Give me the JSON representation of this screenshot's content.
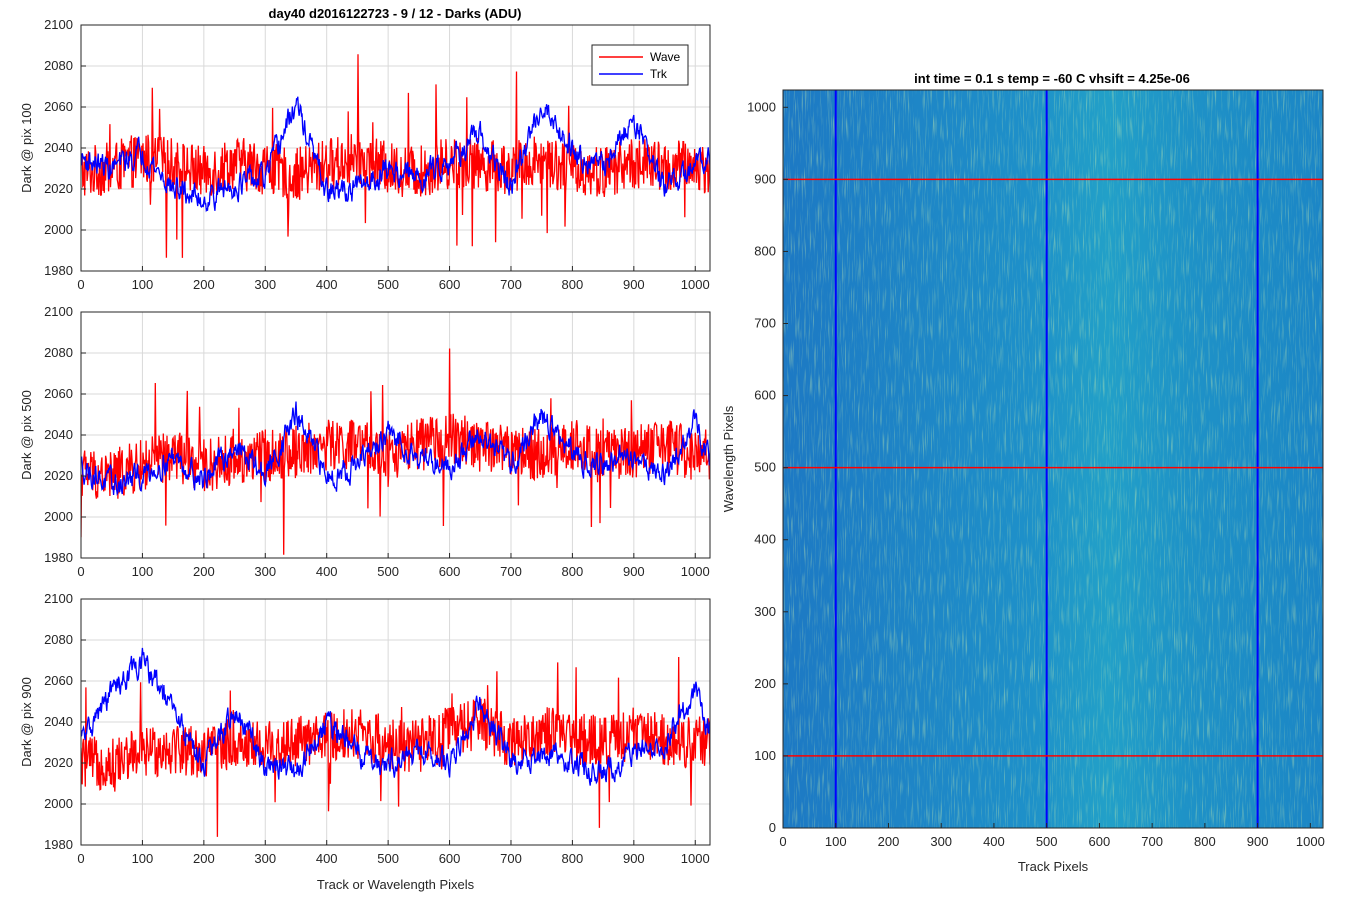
{
  "figure_title": "day40 d2016122723 - 9 / 12 - Darks (ADU)",
  "legend": [
    {
      "label": "Wave",
      "color": "#ff0000"
    },
    {
      "label": "Trk",
      "color": "#0000ff"
    }
  ],
  "colors": {
    "wave": "#ff0000",
    "trk": "#0000ff",
    "grid": "#d9d9d9",
    "axis": "#262626",
    "heat_low": "#1a78c8",
    "heat_mid": "#20a8c8",
    "heat_high": "#8fd06a"
  },
  "chart_data": [
    {
      "type": "line",
      "title": "day40 d2016122723 - 9 / 12 - Darks (ADU)",
      "xlabel": "",
      "ylabel": "Dark @ pix 100",
      "xlim": [
        0,
        1024
      ],
      "ylim": [
        1980,
        2100
      ],
      "xticks": [
        0,
        100,
        200,
        300,
        400,
        500,
        600,
        700,
        800,
        900,
        1000
      ],
      "yticks": [
        1980,
        2000,
        2020,
        2040,
        2060,
        2080,
        2100
      ],
      "grid": true,
      "legend_placement": "top-right",
      "series": [
        {
          "name": "Wave",
          "color": "#ff0000",
          "x": [
            0,
            50,
            100,
            150,
            200,
            250,
            300,
            350,
            400,
            450,
            500,
            550,
            600,
            650,
            700,
            750,
            800,
            850,
            900,
            950,
            1000,
            1024
          ],
          "values": [
            2028,
            2030,
            2035,
            2032,
            2028,
            2033,
            2030,
            2027,
            2032,
            2035,
            2030,
            2028,
            2033,
            2032,
            2030,
            2035,
            2030,
            2028,
            2033,
            2030,
            2032,
            2030
          ]
        },
        {
          "name": "Trk",
          "color": "#0000ff",
          "x": [
            0,
            50,
            100,
            150,
            200,
            250,
            300,
            350,
            400,
            450,
            500,
            550,
            600,
            650,
            700,
            750,
            800,
            850,
            900,
            950,
            1000,
            1024
          ],
          "values": [
            2035,
            2030,
            2038,
            2020,
            2015,
            2022,
            2025,
            2062,
            2018,
            2020,
            2030,
            2025,
            2035,
            2045,
            2020,
            2062,
            2040,
            2030,
            2055,
            2020,
            2030,
            2040
          ]
        }
      ]
    },
    {
      "type": "line",
      "title": "",
      "xlabel": "",
      "ylabel": "Dark @ pix 500",
      "xlim": [
        0,
        1024
      ],
      "ylim": [
        1980,
        2100
      ],
      "xticks": [
        0,
        100,
        200,
        300,
        400,
        500,
        600,
        700,
        800,
        900,
        1000
      ],
      "yticks": [
        1980,
        2000,
        2020,
        2040,
        2060,
        2080,
        2100
      ],
      "grid": true,
      "series": [
        {
          "name": "Wave",
          "color": "#ff0000",
          "x": [
            0,
            50,
            100,
            150,
            200,
            250,
            300,
            350,
            400,
            450,
            500,
            550,
            600,
            650,
            700,
            750,
            800,
            850,
            900,
            950,
            1000,
            1024
          ],
          "values": [
            2022,
            2020,
            2025,
            2030,
            2025,
            2028,
            2030,
            2032,
            2035,
            2035,
            2030,
            2035,
            2038,
            2035,
            2032,
            2030,
            2035,
            2030,
            2032,
            2035,
            2030,
            2030
          ]
        },
        {
          "name": "Trk",
          "color": "#0000ff",
          "x": [
            0,
            50,
            100,
            150,
            200,
            250,
            300,
            350,
            400,
            450,
            500,
            550,
            600,
            650,
            700,
            750,
            800,
            850,
            900,
            950,
            1000,
            1024
          ],
          "values": [
            2025,
            2015,
            2020,
            2030,
            2018,
            2035,
            2020,
            2050,
            2020,
            2025,
            2040,
            2030,
            2025,
            2040,
            2025,
            2050,
            2030,
            2025,
            2030,
            2020,
            2045,
            2030
          ]
        }
      ]
    },
    {
      "type": "line",
      "title": "",
      "xlabel": "Track or Wavelength Pixels",
      "ylabel": "Dark @ pix 900",
      "xlim": [
        0,
        1024
      ],
      "ylim": [
        1980,
        2100
      ],
      "xticks": [
        0,
        100,
        200,
        300,
        400,
        500,
        600,
        700,
        800,
        900,
        1000
      ],
      "yticks": [
        1980,
        2000,
        2020,
        2040,
        2060,
        2080,
        2100
      ],
      "grid": true,
      "series": [
        {
          "name": "Wave",
          "color": "#ff0000",
          "x": [
            0,
            50,
            100,
            150,
            200,
            250,
            300,
            350,
            400,
            450,
            500,
            550,
            600,
            650,
            700,
            750,
            800,
            850,
            900,
            950,
            1000,
            1024
          ],
          "values": [
            2020,
            2020,
            2025,
            2028,
            2025,
            2030,
            2028,
            2030,
            2032,
            2035,
            2030,
            2028,
            2035,
            2040,
            2030,
            2035,
            2032,
            2030,
            2035,
            2032,
            2030,
            2030
          ]
        },
        {
          "name": "Trk",
          "color": "#0000ff",
          "x": [
            0,
            50,
            100,
            150,
            200,
            250,
            300,
            350,
            400,
            450,
            500,
            550,
            600,
            650,
            700,
            750,
            800,
            850,
            900,
            950,
            1000,
            1024
          ],
          "values": [
            2030,
            2055,
            2070,
            2045,
            2020,
            2045,
            2020,
            2015,
            2040,
            2025,
            2020,
            2025,
            2020,
            2050,
            2020,
            2025,
            2020,
            2015,
            2025,
            2030,
            2055,
            2035
          ]
        }
      ]
    },
    {
      "type": "heatmap",
      "title": "int time = 0.1 s   temp = -60 C   vhsift = 4.25e-06",
      "xlabel": "Track Pixels",
      "ylabel": "Wavelength Pixels",
      "xlim": [
        0,
        1024
      ],
      "ylim": [
        0,
        1024
      ],
      "xticks": [
        0,
        100,
        200,
        300,
        400,
        500,
        600,
        700,
        800,
        900,
        1000
      ],
      "yticks": [
        0,
        100,
        200,
        300,
        400,
        500,
        600,
        700,
        800,
        900,
        1000
      ],
      "grid": false,
      "value_range": [
        1980,
        2100
      ],
      "marker_lines": {
        "vertical_x": [
          100,
          500,
          900
        ],
        "vertical_color": "#0000ff",
        "horizontal_y": [
          100,
          500,
          900
        ],
        "horizontal_color": "#ff0000"
      }
    }
  ]
}
